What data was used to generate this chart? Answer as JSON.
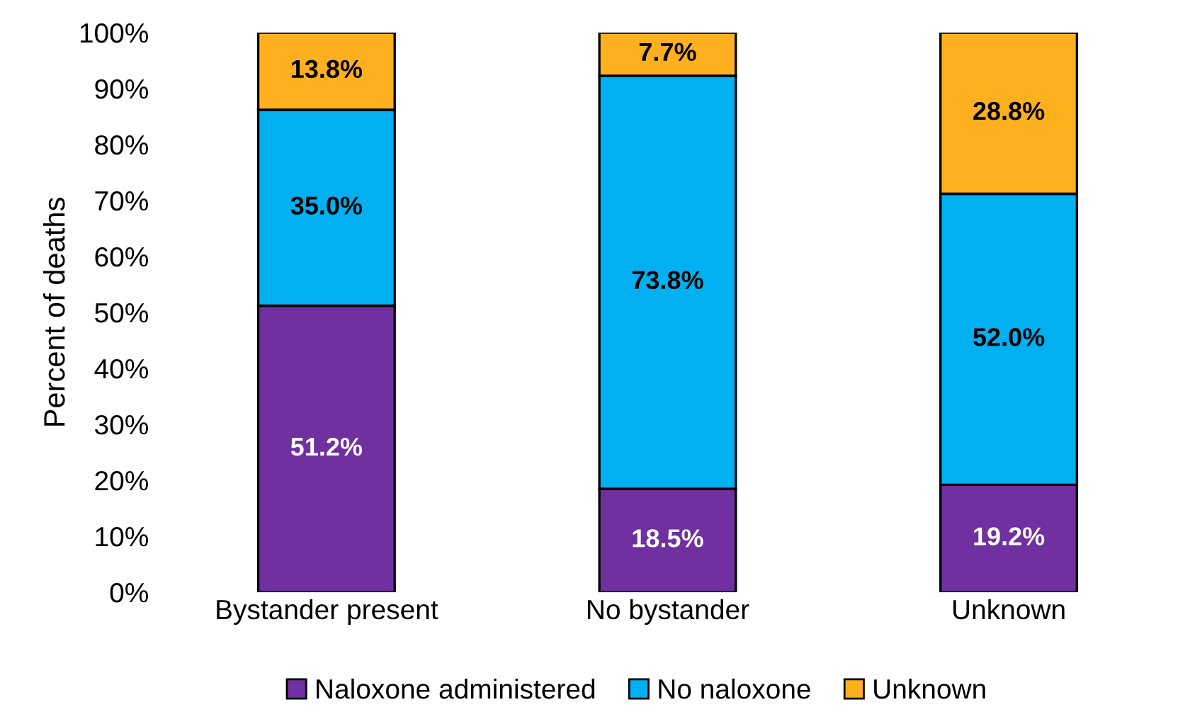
{
  "chart_data": {
    "type": "bar",
    "stacked": true,
    "ylabel": "Percent of deaths",
    "categories": [
      "Bystander present",
      "No bystander",
      "Unknown"
    ],
    "series": [
      {
        "name": "Naloxone administered",
        "color": "#7030a0",
        "values": [
          51.2,
          18.5,
          19.2
        ]
      },
      {
        "name": "No naloxone",
        "color": "#00b0f0",
        "values": [
          35.0,
          73.8,
          52.0
        ]
      },
      {
        "name": "Unknown",
        "color": "#ffb01f",
        "values": [
          13.8,
          7.7,
          28.8
        ]
      }
    ],
    "value_labels": [
      [
        "51.2%",
        "18.5%",
        "19.2%"
      ],
      [
        "35.0%",
        "73.8%",
        "52.0%"
      ],
      [
        "13.8%",
        "7.7%",
        "28.8%"
      ]
    ],
    "ylim": [
      0,
      100
    ],
    "yticks": [
      {
        "value": 0,
        "label": "0%"
      },
      {
        "value": 10,
        "label": "10%"
      },
      {
        "value": 20,
        "label": "20%"
      },
      {
        "value": 30,
        "label": "30%"
      },
      {
        "value": 40,
        "label": "40%"
      },
      {
        "value": 50,
        "label": "50%"
      },
      {
        "value": 60,
        "label": "60%"
      },
      {
        "value": 70,
        "label": "70%"
      },
      {
        "value": 80,
        "label": "80%"
      },
      {
        "value": 90,
        "label": "90%"
      },
      {
        "value": 100,
        "label": "100%"
      }
    ],
    "grid": false,
    "legend": "bottom"
  }
}
